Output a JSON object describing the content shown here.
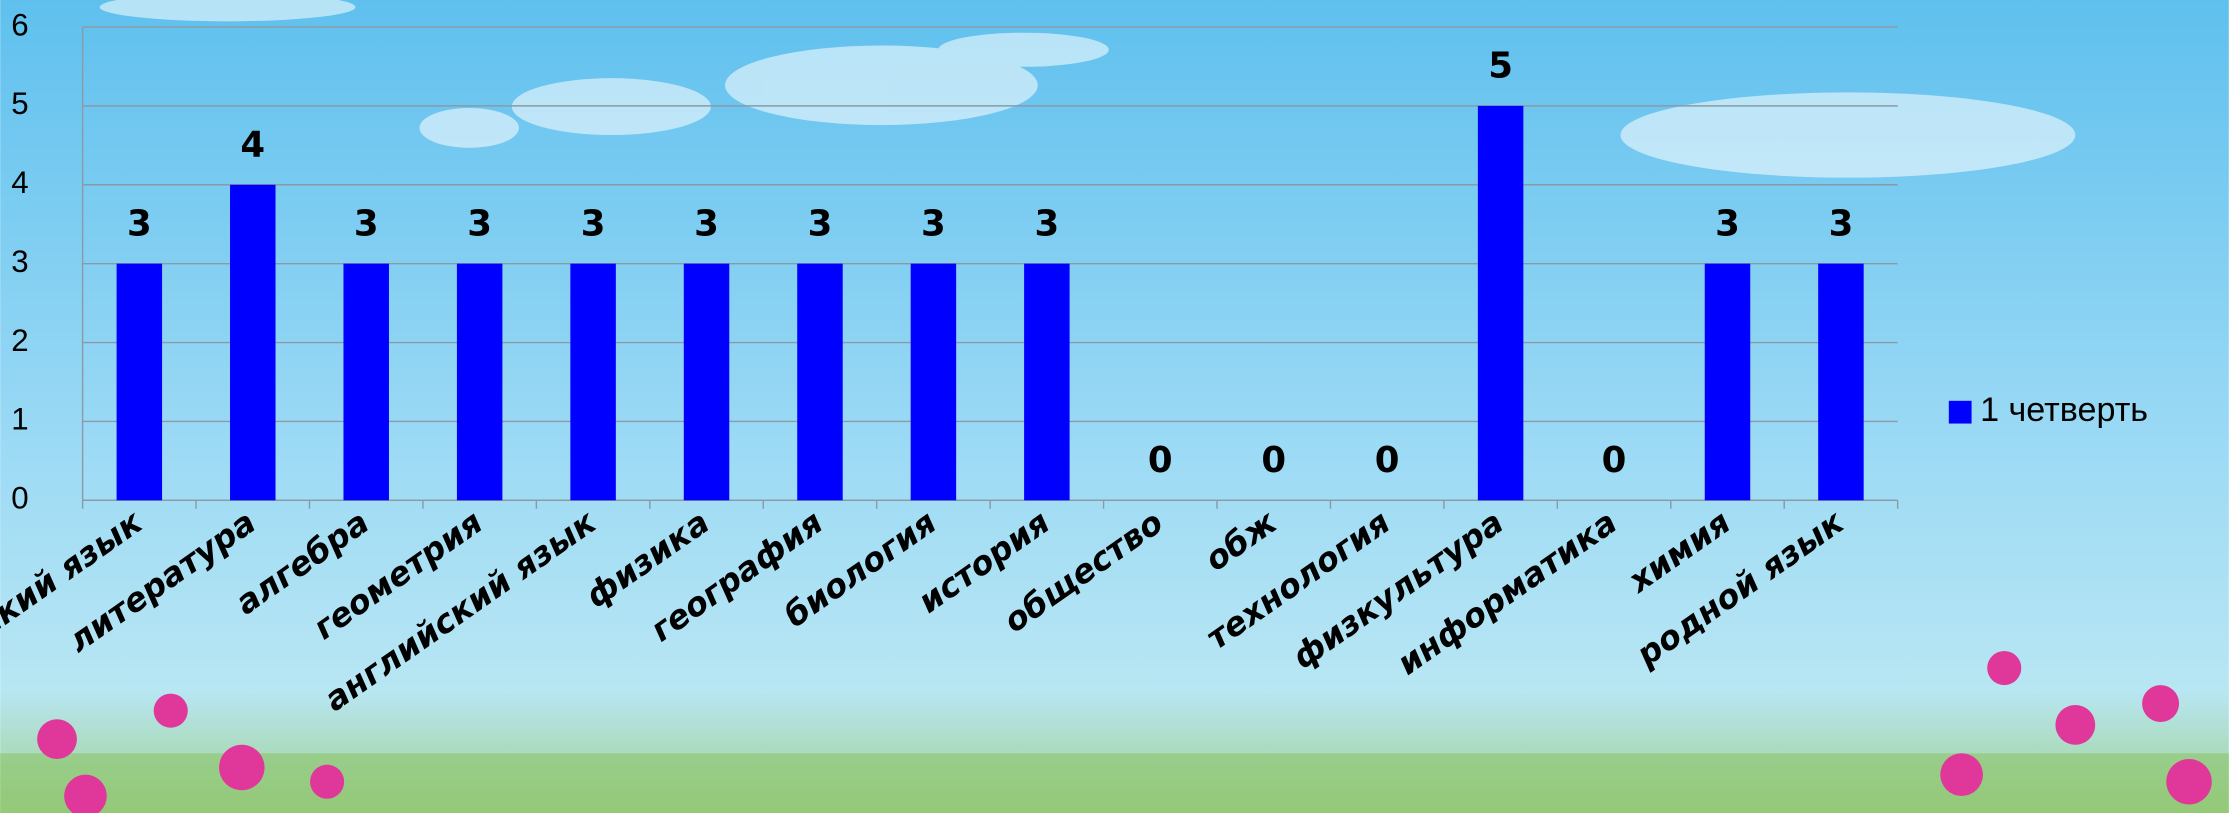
{
  "chart_data": {
    "type": "bar",
    "categories": [
      "русский язык",
      "литература",
      "алгебра",
      "геометрия",
      "английский язык",
      "физика",
      "география",
      "биология",
      "история",
      "общество",
      "обж",
      "технология",
      "физкультура",
      "информатика",
      "химия",
      "родной язык"
    ],
    "series": [
      {
        "name": "1 четверть",
        "color": "#0000ff",
        "values": [
          3,
          4,
          3,
          3,
          3,
          3,
          3,
          3,
          3,
          0,
          0,
          0,
          5,
          0,
          3,
          3
        ]
      }
    ],
    "ylim": [
      0,
      6
    ],
    "yticks": [
      0,
      1,
      2,
      3,
      4,
      5,
      6
    ],
    "grid": true,
    "legend": "right"
  }
}
